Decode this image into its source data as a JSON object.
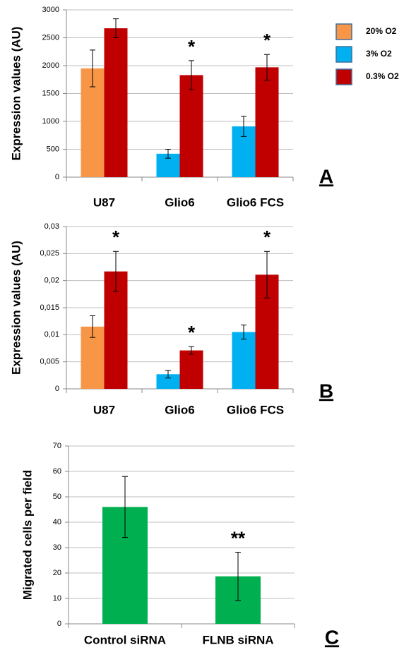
{
  "chart_data": [
    {
      "type": "bar",
      "panel": "A",
      "ylabel": "Expression values (AU)",
      "categories": [
        "U87",
        "Glio6",
        "Glio6 FCS"
      ],
      "series": [
        {
          "name": "20% O2",
          "color": "#f79646",
          "values": [
            1950,
            null,
            null
          ],
          "errors": [
            330,
            null,
            null
          ],
          "annotations": [
            null,
            null,
            null
          ]
        },
        {
          "name": "3% O2",
          "color": "#00b0f0",
          "values": [
            null,
            420,
            910
          ],
          "errors": [
            null,
            80,
            180
          ],
          "annotations": [
            null,
            null,
            null
          ]
        },
        {
          "name": "0.3% O2",
          "color": "#c00000",
          "values": [
            2670,
            1830,
            1970
          ],
          "errors": [
            170,
            260,
            230
          ],
          "annotations": [
            null,
            "*",
            "*"
          ]
        }
      ],
      "ylim": [
        0,
        3000
      ],
      "yticks": [
        0,
        500,
        1000,
        1500,
        2000,
        2500,
        3000
      ],
      "grid": true,
      "legend": "right"
    },
    {
      "type": "bar",
      "panel": "B",
      "ylabel": "Expression values (AU)",
      "categories": [
        "U87",
        "Glio6",
        "Glio6 FCS"
      ],
      "series": [
        {
          "color": "#f79646",
          "values": [
            0.0115,
            null,
            null
          ],
          "errors": [
            0.002,
            null,
            null
          ],
          "annotations": [
            null,
            null,
            null
          ]
        },
        {
          "color": "#00b0f0",
          "values": [
            null,
            0.0027,
            0.0105
          ],
          "errors": [
            null,
            0.0007,
            0.0013
          ],
          "annotations": [
            null,
            null,
            null
          ]
        },
        {
          "color": "#c00000",
          "values": [
            0.0217,
            0.0071,
            0.0211
          ],
          "errors": [
            0.0037,
            0.0007,
            0.0043
          ],
          "annotations": [
            "*",
            "*",
            "*"
          ]
        }
      ],
      "ylim": [
        0,
        0.03
      ],
      "yticks": [
        0,
        {
          "value": 0.005,
          "label": "0,005"
        },
        {
          "value": 0.01,
          "label": "0,01"
        },
        {
          "value": 0.015,
          "label": "0,015"
        },
        {
          "value": 0.02,
          "label": "0,02"
        },
        {
          "value": 0.025,
          "label": "0,025"
        },
        {
          "value": 0.03,
          "label": "0,03"
        }
      ],
      "grid": true
    },
    {
      "type": "bar",
      "panel": "C",
      "ylabel": "Migrated cells per field",
      "categories": [
        "Control siRNA",
        "FLNB siRNA"
      ],
      "series": [
        {
          "color": "#00b050",
          "values": [
            46,
            18.7
          ],
          "errors": [
            12,
            9.5
          ],
          "annotations": [
            null,
            "**"
          ]
        }
      ],
      "ylim": [
        0,
        70
      ],
      "yticks": [
        0,
        10,
        20,
        30,
        40,
        50,
        60,
        70
      ],
      "grid": true
    }
  ]
}
